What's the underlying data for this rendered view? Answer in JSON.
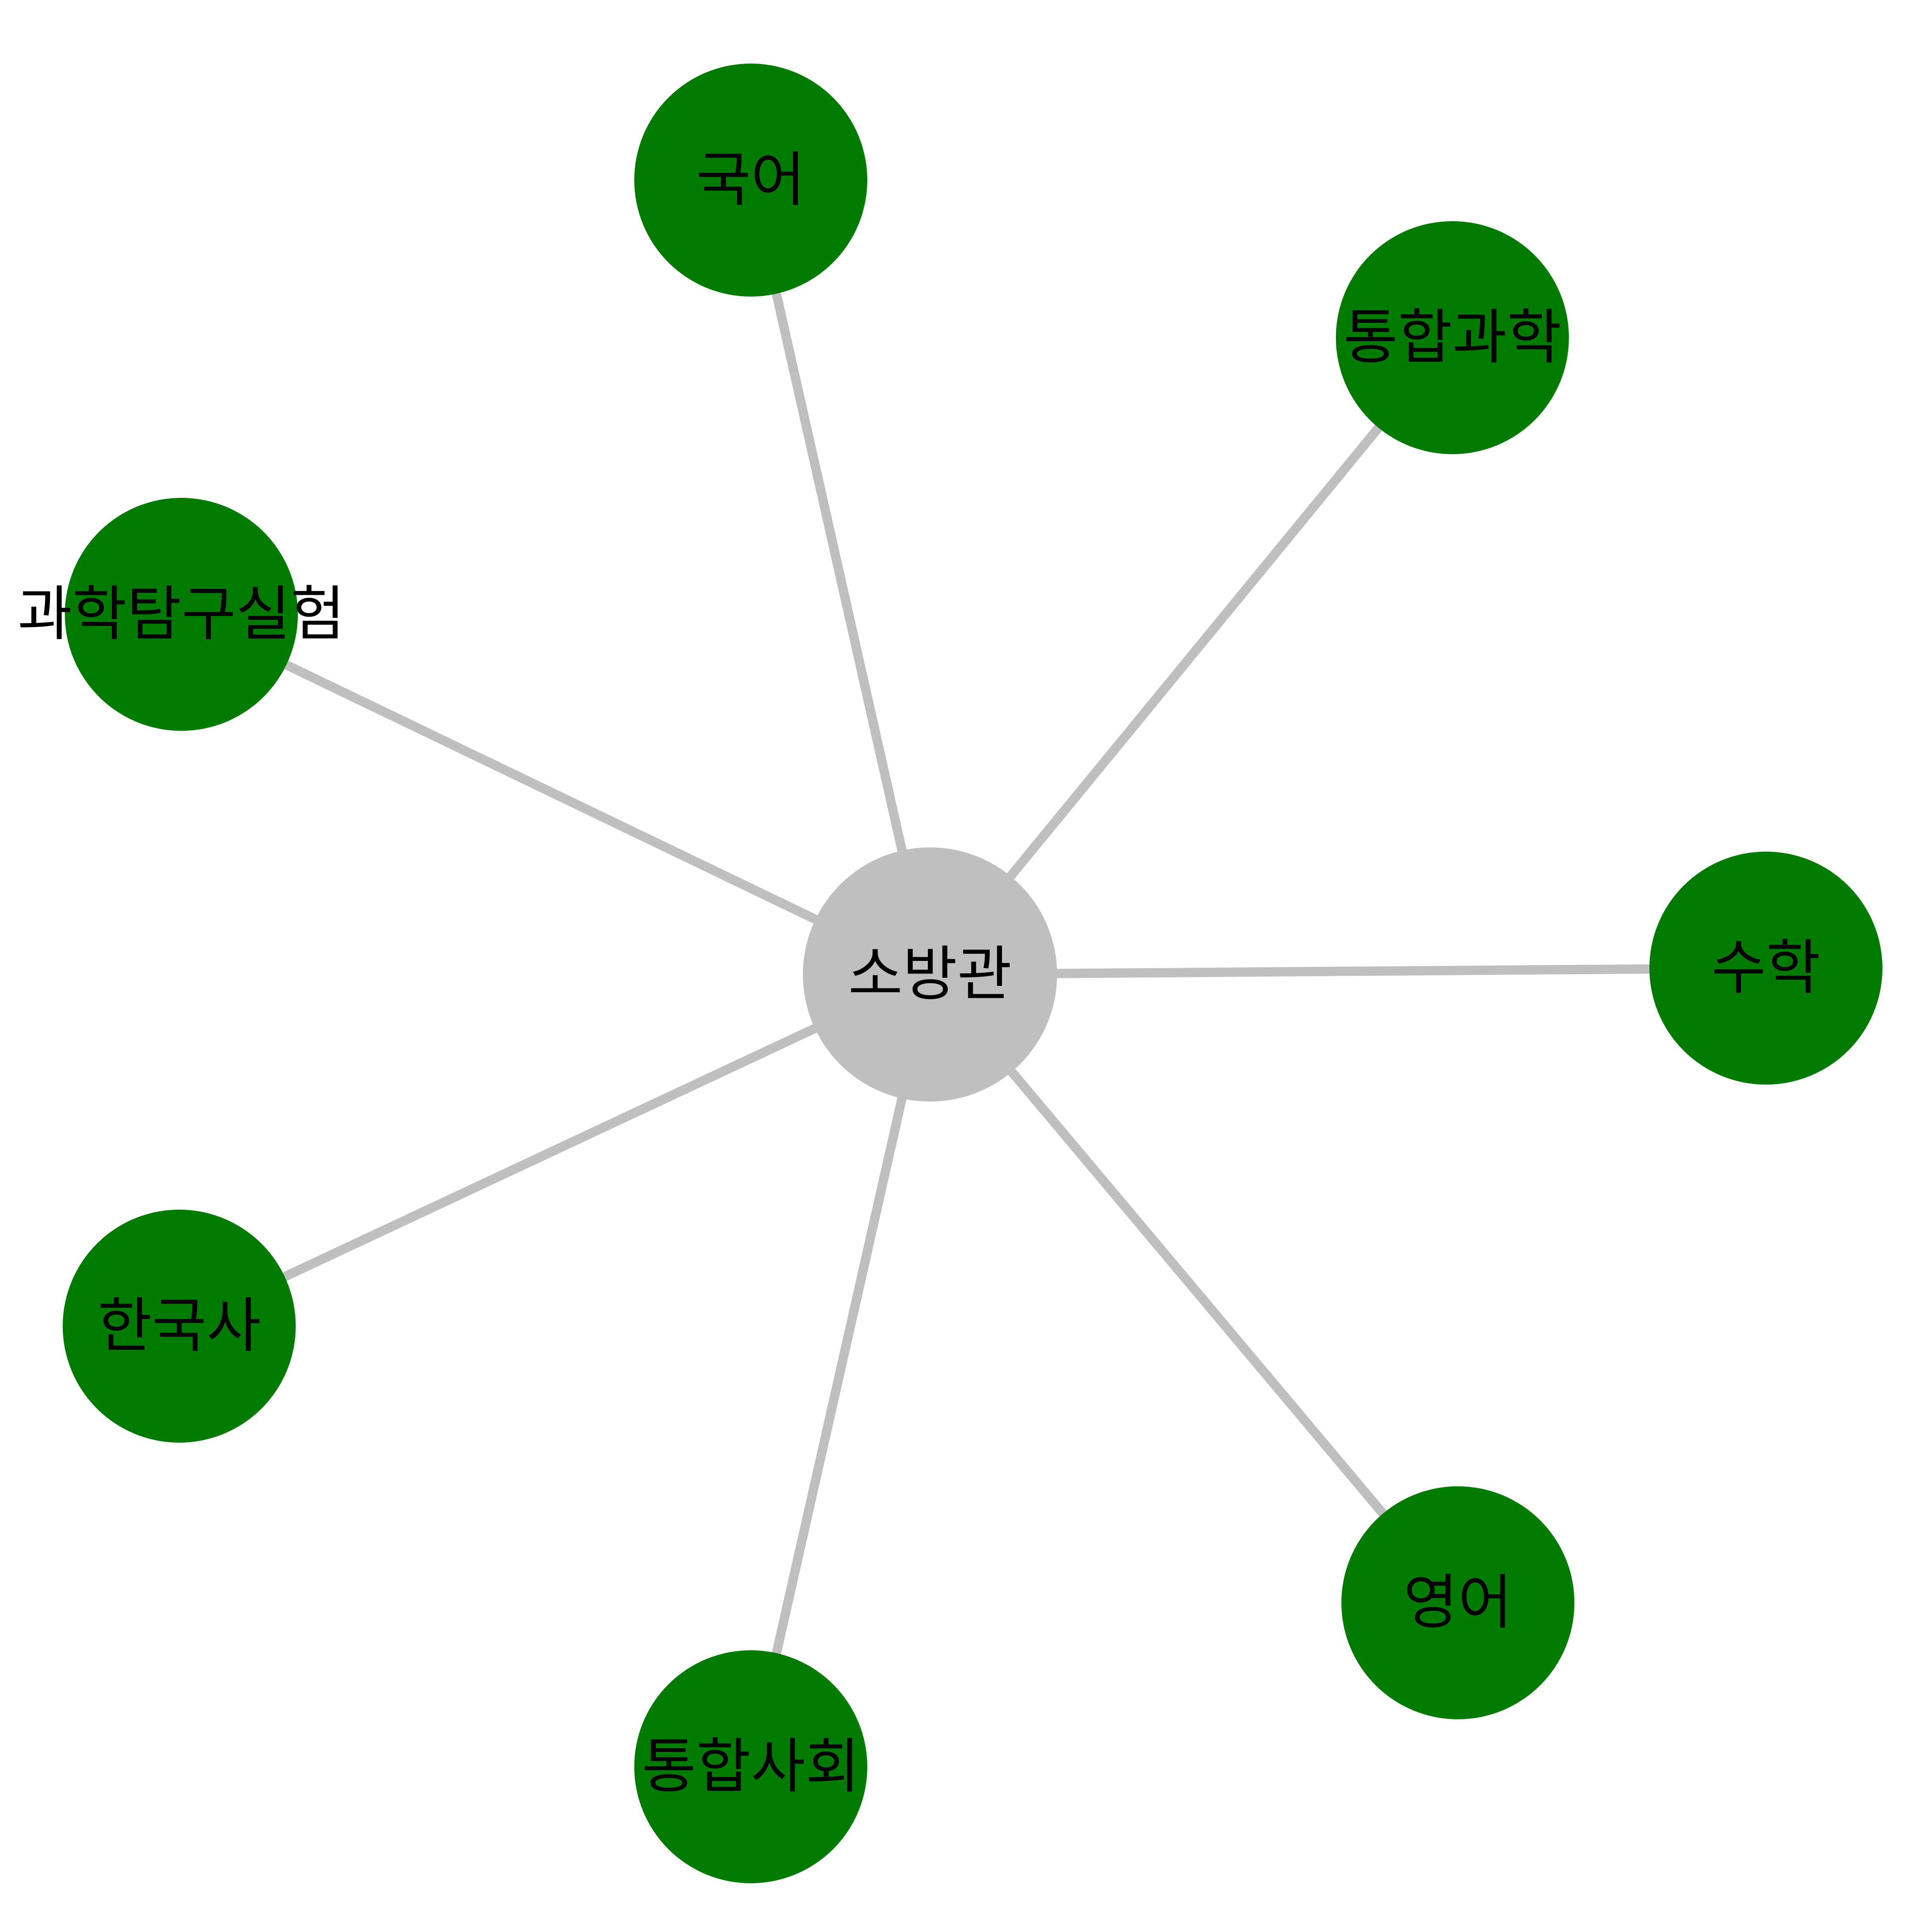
{
  "diagram": {
    "center": {
      "label": "소방관",
      "color": "#bfbfbf"
    },
    "edge_color": "#bfbfbf",
    "leaf_color": "#007b00",
    "label_color": "#000000",
    "nodes": [
      {
        "label": "국어"
      },
      {
        "label": "통합과학"
      },
      {
        "label": "과학탐구실험"
      },
      {
        "label": "수학"
      },
      {
        "label": "한국사"
      },
      {
        "label": "영어"
      },
      {
        "label": "통합사회"
      }
    ]
  }
}
